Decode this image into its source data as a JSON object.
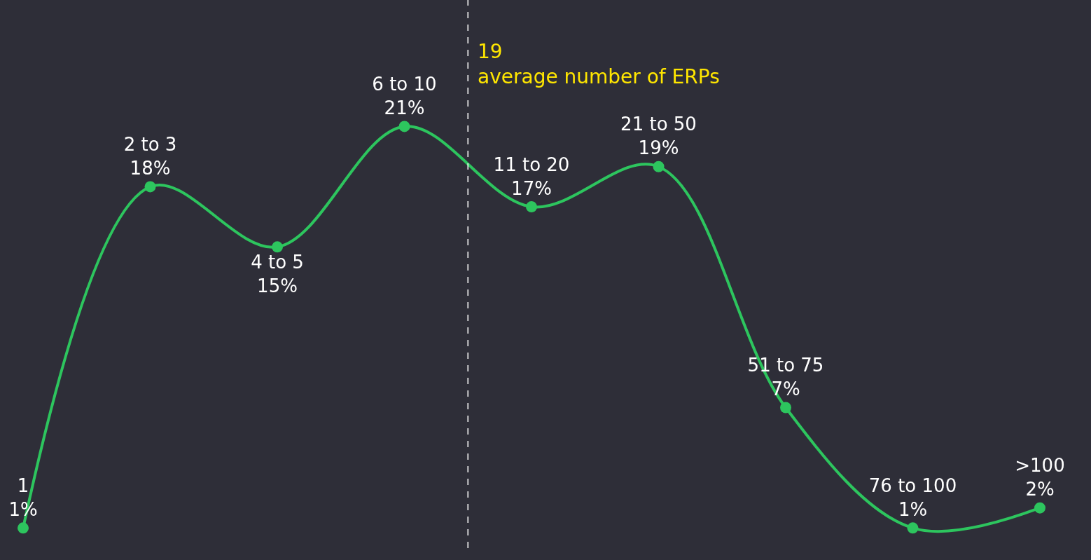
{
  "chart_data": {
    "type": "line",
    "categories": [
      "1",
      "2 to 3",
      "4 to 5",
      "6 to 10",
      "11 to 20",
      "21 to 50",
      "51 to 75",
      "76 to 100",
      ">100"
    ],
    "series": [
      {
        "color": "#2dc55e",
        "values": [
          1,
          18,
          15,
          21,
          17,
          19,
          7,
          1,
          2
        ],
        "value_labels": [
          "1%",
          "18%",
          "15%",
          "21%",
          "17%",
          "19%",
          "7%",
          "1%",
          "2%"
        ]
      }
    ],
    "marker": "circle",
    "line_style": "solid",
    "legend": false,
    "tick_labels": false,
    "annotations": [
      "19\naverage number of ERPs"
    ]
  }
}
